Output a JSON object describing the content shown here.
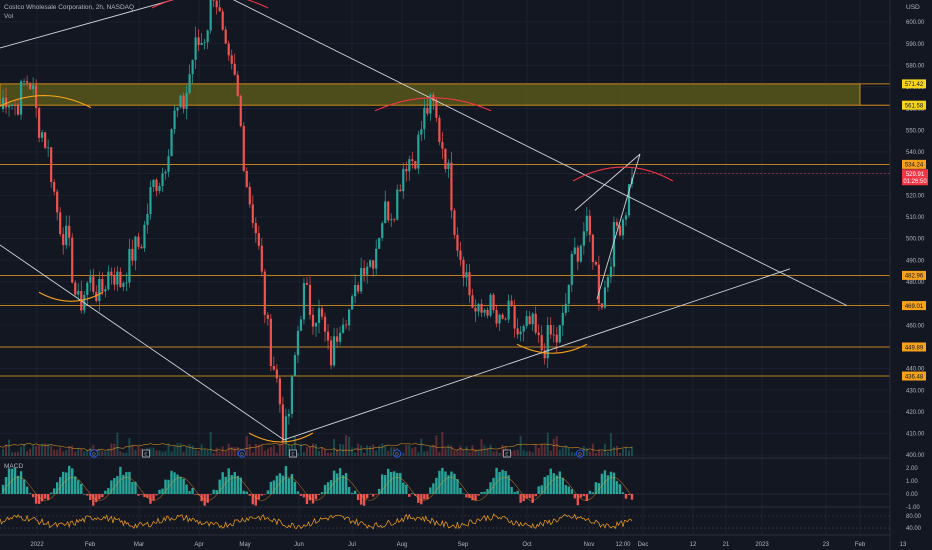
{
  "header": {
    "symbol_line": "Costco Wholesale Corporation, 2h, NASDAQ",
    "vol_label": "Vol",
    "currency": "USD"
  },
  "chart_data": [
    {
      "type": "candlestick",
      "panel": "price",
      "ylim": [
        397,
        608
      ],
      "y_ticks": [
        600,
        590,
        580,
        570,
        560,
        550,
        540,
        530,
        520,
        510,
        500,
        490,
        480,
        470,
        460,
        450,
        440,
        430,
        420,
        410,
        400
      ],
      "x_ticks": [
        "2022",
        "Feb",
        "Mar",
        "Apr",
        "May",
        "Jun",
        "Jul",
        "Aug",
        "Sep",
        "Oct",
        "Nov",
        "12:00",
        "Dec",
        "12",
        "21",
        "2023",
        "23",
        "Feb",
        "13"
      ],
      "pivots": [
        {
          "label": "start",
          "value": 560
        },
        {
          "label": "Jan high",
          "value": 571
        },
        {
          "label": "Jan low",
          "value": 473
        },
        {
          "label": "Mar low",
          "value": 486
        },
        {
          "label": "Apr high",
          "value": 612
        },
        {
          "label": "late Apr",
          "value": 566
        },
        {
          "label": "May low",
          "value": 407
        },
        {
          "label": "Jun",
          "value": 478
        },
        {
          "label": "Jun low",
          "value": 448
        },
        {
          "label": "Aug high",
          "value": 564
        },
        {
          "label": "Sep low",
          "value": 470
        },
        {
          "label": "Oct low",
          "value": 450
        },
        {
          "label": "Oct bounce",
          "value": 510
        },
        {
          "label": "Nov low",
          "value": 472
        },
        {
          "label": "last",
          "value": 529.91
        }
      ],
      "price_levels": [
        {
          "value": "534.24",
          "color": "#f7a21b"
        },
        {
          "value": "482.96",
          "color": "#f7a21b"
        },
        {
          "value": "469.01",
          "color": "#f7a21b"
        },
        {
          "value": "449.89",
          "color": "#f7a21b"
        },
        {
          "value": "436.48",
          "color": "#f7a21b"
        }
      ],
      "zone": {
        "top": "571.42",
        "bottom": "561.58",
        "color": "#5b5b1a"
      },
      "last_price": {
        "value": "529.91",
        "countdown": "01:26:50",
        "color": "#f23645"
      },
      "colors": {
        "up": "#26a69a",
        "down": "#ef5350"
      }
    },
    {
      "type": "histogram",
      "panel": "macd",
      "title": "MACD",
      "y_ticks": [
        "2.00",
        "1.00",
        "0.00",
        "-1.00"
      ],
      "colors": {
        "up": "#26a69a",
        "down": "#ef5350",
        "signal": "#f7a21b"
      }
    },
    {
      "type": "line",
      "panel": "oscillator",
      "y_ticks": [
        "80.00",
        "40.00"
      ],
      "colors": {
        "line": "#f7a21b"
      }
    }
  ],
  "event_markers": [
    {
      "date": "Jan",
      "letter": "D"
    },
    {
      "date": "Feb",
      "letter": "E"
    },
    {
      "date": "May",
      "letter": "D"
    },
    {
      "date": "May",
      "letter": "E"
    },
    {
      "date": "Aug",
      "letter": "D"
    },
    {
      "date": "Sep",
      "letter": "E"
    },
    {
      "date": "Oct",
      "letter": "D"
    }
  ]
}
